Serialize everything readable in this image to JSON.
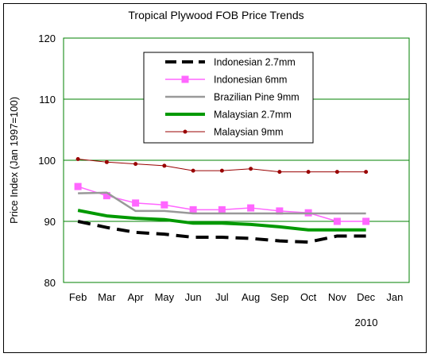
{
  "chart_data": {
    "type": "line",
    "title": "Tropical Plywood FOB Price Trends",
    "ylabel": "Price Index (Jan 1997=100)",
    "xlabel": "",
    "year_label": "2010",
    "categories": [
      "Feb",
      "Mar",
      "Apr",
      "May",
      "Jun",
      "Jul",
      "Aug",
      "Sep",
      "Oct",
      "Nov",
      "Dec",
      "Jan"
    ],
    "ylim": [
      80,
      120
    ],
    "yticks": [
      "80",
      "90",
      "100",
      "110",
      "120"
    ],
    "grid": "horizontal",
    "legend_position": "top-center",
    "series": [
      {
        "name": "Indonesian 2.7mm",
        "style": "dashed",
        "color": "#000000",
        "marker": "none",
        "values": [
          90.0,
          89.0,
          88.2,
          87.9,
          87.4,
          87.4,
          87.2,
          86.8,
          86.6,
          87.6,
          87.6,
          null
        ]
      },
      {
        "name": "Indonesian 6mm",
        "style": "solid",
        "color": "#ff66ff",
        "marker": "square",
        "values": [
          95.7,
          94.2,
          93.0,
          92.7,
          91.9,
          91.9,
          92.2,
          91.7,
          91.4,
          90.0,
          90.0,
          null
        ]
      },
      {
        "name": "Brazilian Pine 9mm",
        "style": "solid",
        "color": "#999999",
        "marker": "none",
        "values": [
          94.6,
          94.7,
          91.7,
          91.7,
          91.3,
          91.3,
          91.3,
          91.3,
          91.3,
          91.3,
          91.3,
          null
        ]
      },
      {
        "name": "Malaysian 2.7mm",
        "style": "solid",
        "color": "#009900",
        "marker": "none",
        "values": [
          91.8,
          90.9,
          90.5,
          90.3,
          89.7,
          89.7,
          89.5,
          89.1,
          88.6,
          88.6,
          88.6,
          null
        ]
      },
      {
        "name": "Malaysian 9mm",
        "style": "solid",
        "color": "#990000",
        "marker": "dot",
        "values": [
          100.2,
          99.7,
          99.4,
          99.1,
          98.3,
          98.3,
          98.6,
          98.1,
          98.1,
          98.1,
          98.1,
          null
        ]
      }
    ]
  }
}
